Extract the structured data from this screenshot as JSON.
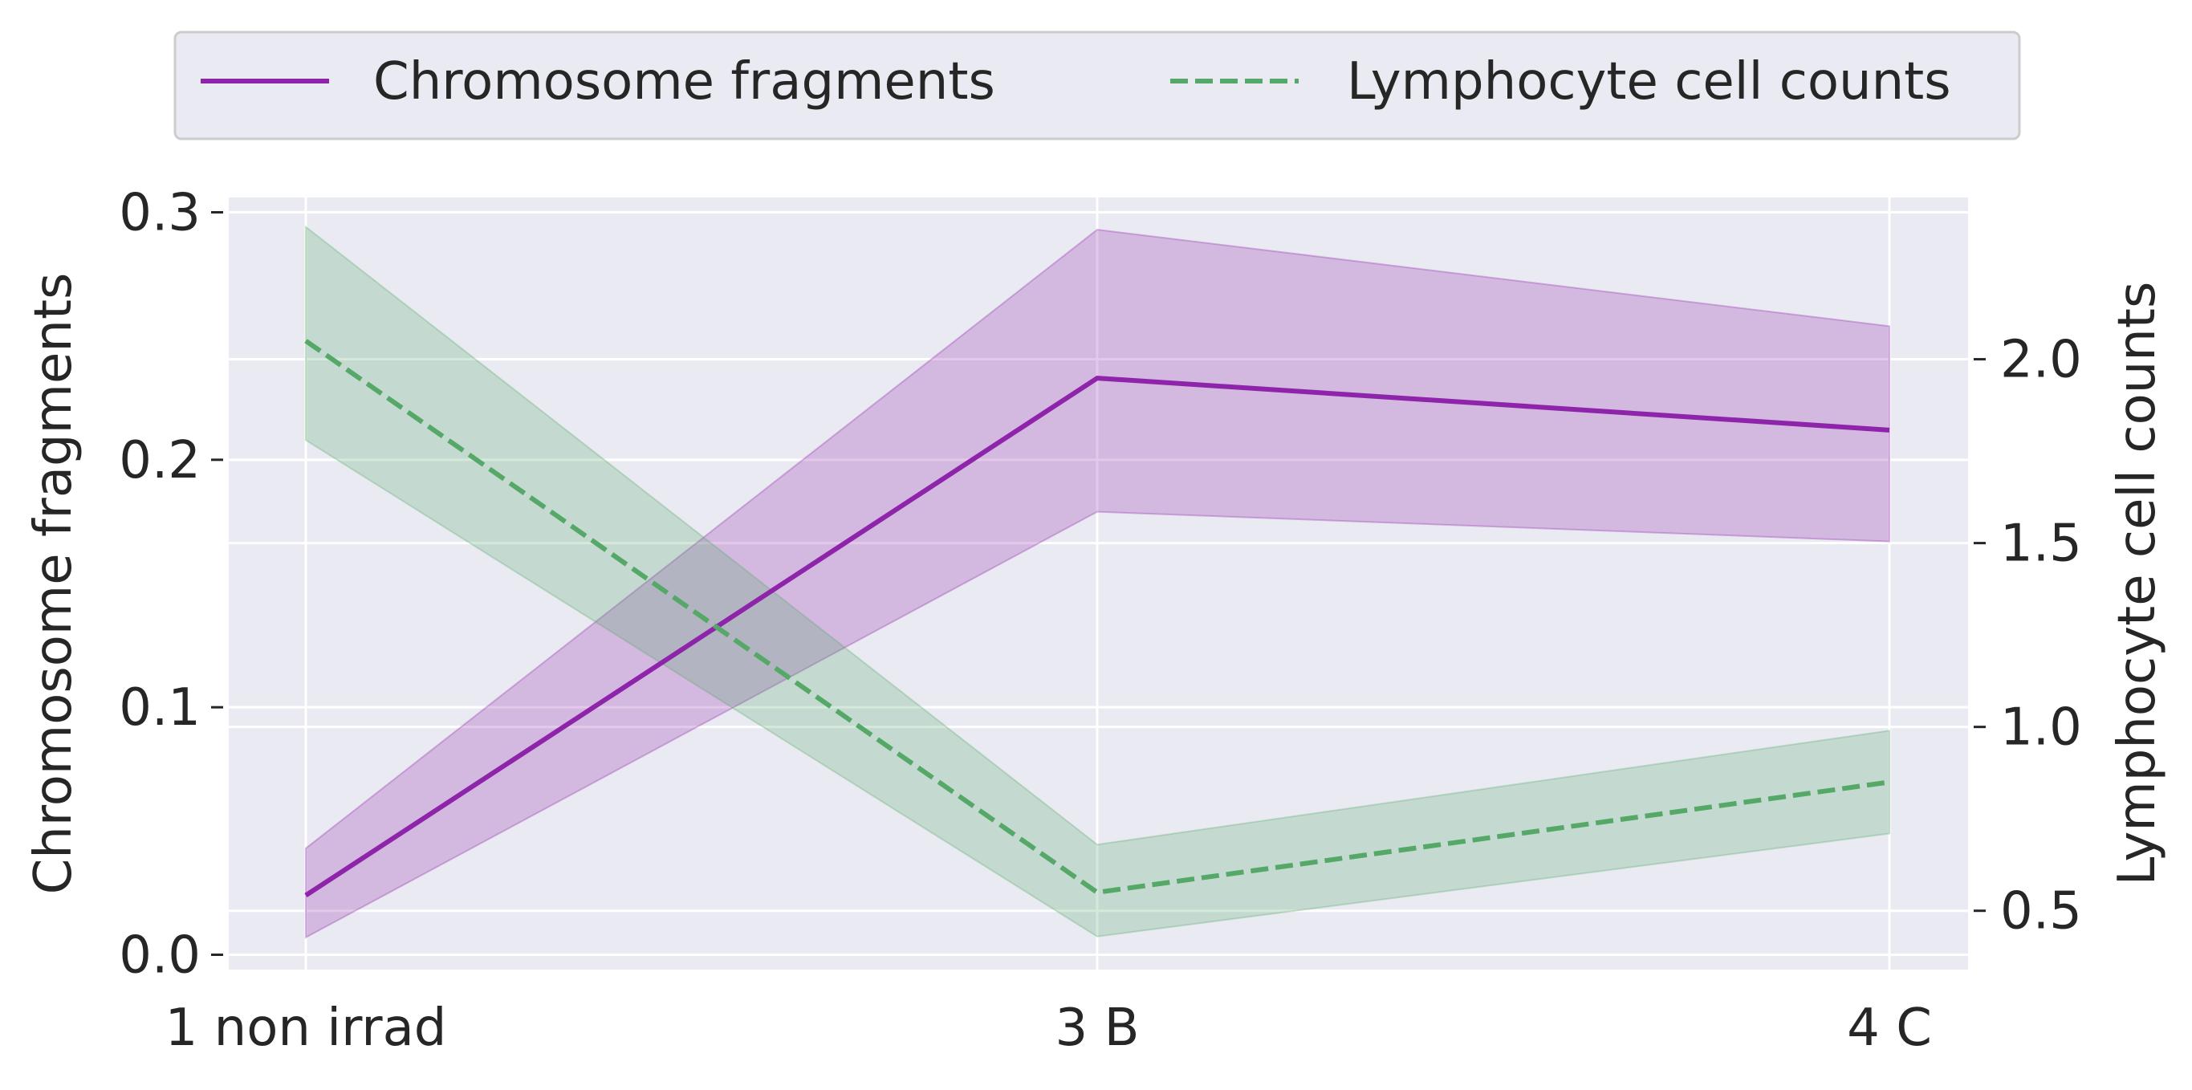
{
  "chart_data": {
    "type": "line",
    "title": "",
    "categories": [
      "1 non irrad",
      "3 B",
      "4 C"
    ],
    "xlabel": "",
    "y_left": {
      "label": "Chromosome fragments",
      "lim": [
        -0.006,
        0.306
      ],
      "ticks": [
        "0.0",
        "0.1",
        "0.2",
        "0.3"
      ],
      "tick_values": [
        0.0,
        0.1,
        0.2,
        0.3
      ]
    },
    "y_right": {
      "label": "Lymphocyte cell counts",
      "lim": [
        0.34,
        2.44
      ],
      "ticks": [
        "0.5",
        "1.0",
        "1.5",
        "2.0"
      ],
      "tick_values": [
        0.5,
        1.0,
        1.5,
        2.0
      ]
    },
    "series": [
      {
        "name": "Chromosome fragments",
        "axis": "left",
        "color": "#8e24aa",
        "style": "solid",
        "values": [
          0.024,
          0.233,
          0.212
        ],
        "lower": [
          0.007,
          0.179,
          0.167
        ],
        "upper": [
          0.043,
          0.293,
          0.254
        ]
      },
      {
        "name": "Lymphocyte cell counts",
        "axis": "right",
        "color": "#55a868",
        "style": "dashed",
        "values": [
          2.05,
          0.55,
          0.85
        ],
        "lower": [
          1.78,
          0.43,
          0.71
        ],
        "upper": [
          2.36,
          0.68,
          0.99
        ]
      }
    ],
    "grid": true,
    "background": "#eaeaf2",
    "legend_position": "top-center"
  }
}
